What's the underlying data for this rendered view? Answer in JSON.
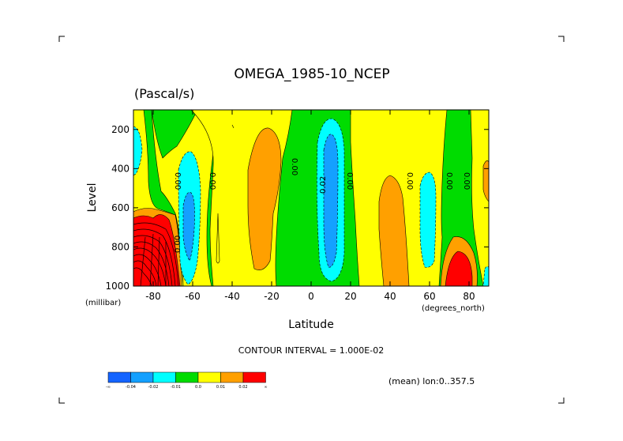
{
  "chart_data": {
    "type": "contour",
    "title": "OMEGA_1985-10_NCEP",
    "units": "(Pascal/s)",
    "xlabel": "Latitude",
    "ylabel": "Level",
    "x_unit": "(degrees_north)",
    "y_unit": "(millibar)",
    "xlim": [
      -90,
      90
    ],
    "ylim": [
      1000,
      100
    ],
    "x_ticks": [
      -80,
      -60,
      -40,
      -20,
      0,
      20,
      40,
      60,
      80
    ],
    "y_ticks": [
      200,
      400,
      600,
      800,
      1000
    ],
    "contour_interval_text": "CONTOUR INTERVAL = 1.000E-02",
    "mean_text": "(mean) lon:0..357.5",
    "contour_labels": [
      "0.00",
      "0.00",
      "0.00",
      "0.02",
      "0.00",
      "0.00",
      "0.00",
      "0.00",
      "0.00"
    ],
    "colorbar": {
      "colors": [
        "#1464ff",
        "#14a0ff",
        "#00ffff",
        "#00dc00",
        "#ffff00",
        "#ffa000",
        "#ff0000"
      ],
      "labels": [
        "-∞",
        "-0.04",
        "-0.02",
        "-0.01",
        "0.0",
        "0.01",
        "0.02",
        "∞"
      ]
    }
  }
}
